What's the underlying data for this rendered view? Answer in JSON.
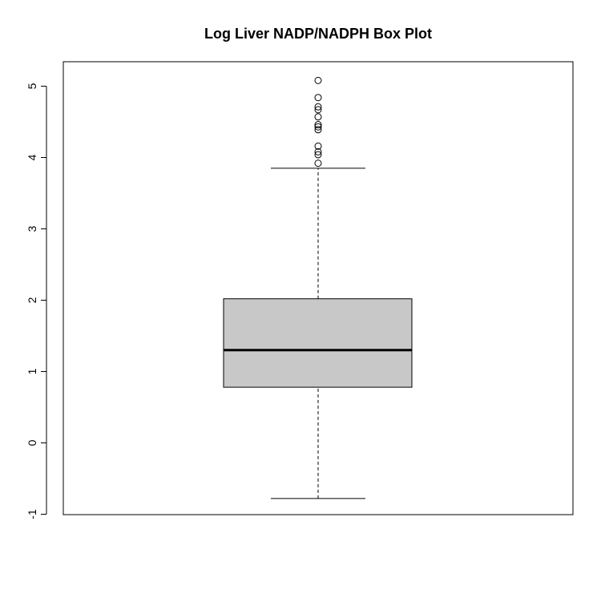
{
  "chart_data": {
    "type": "box",
    "title": "Log Liver NADP/NADPH Box Plot",
    "xlabel": "",
    "ylabel": "",
    "ylim": [
      -1,
      5.35
    ],
    "yticks": [
      -1,
      0,
      1,
      2,
      3,
      4,
      5
    ],
    "ytick_labels": [
      "-1",
      "0",
      "1",
      "2",
      "3",
      "4",
      "5"
    ],
    "grid": false,
    "box": {
      "whisker_low": -0.78,
      "q1": 0.78,
      "median": 1.3,
      "q3": 2.02,
      "whisker_high": 3.85
    },
    "outliers": [
      3.92,
      4.04,
      4.08,
      4.16,
      4.39,
      4.43,
      4.46,
      4.57,
      4.67,
      4.71,
      4.84,
      5.08
    ],
    "colors": {
      "box_fill": "#c8c8c8",
      "stroke": "#000000"
    }
  }
}
